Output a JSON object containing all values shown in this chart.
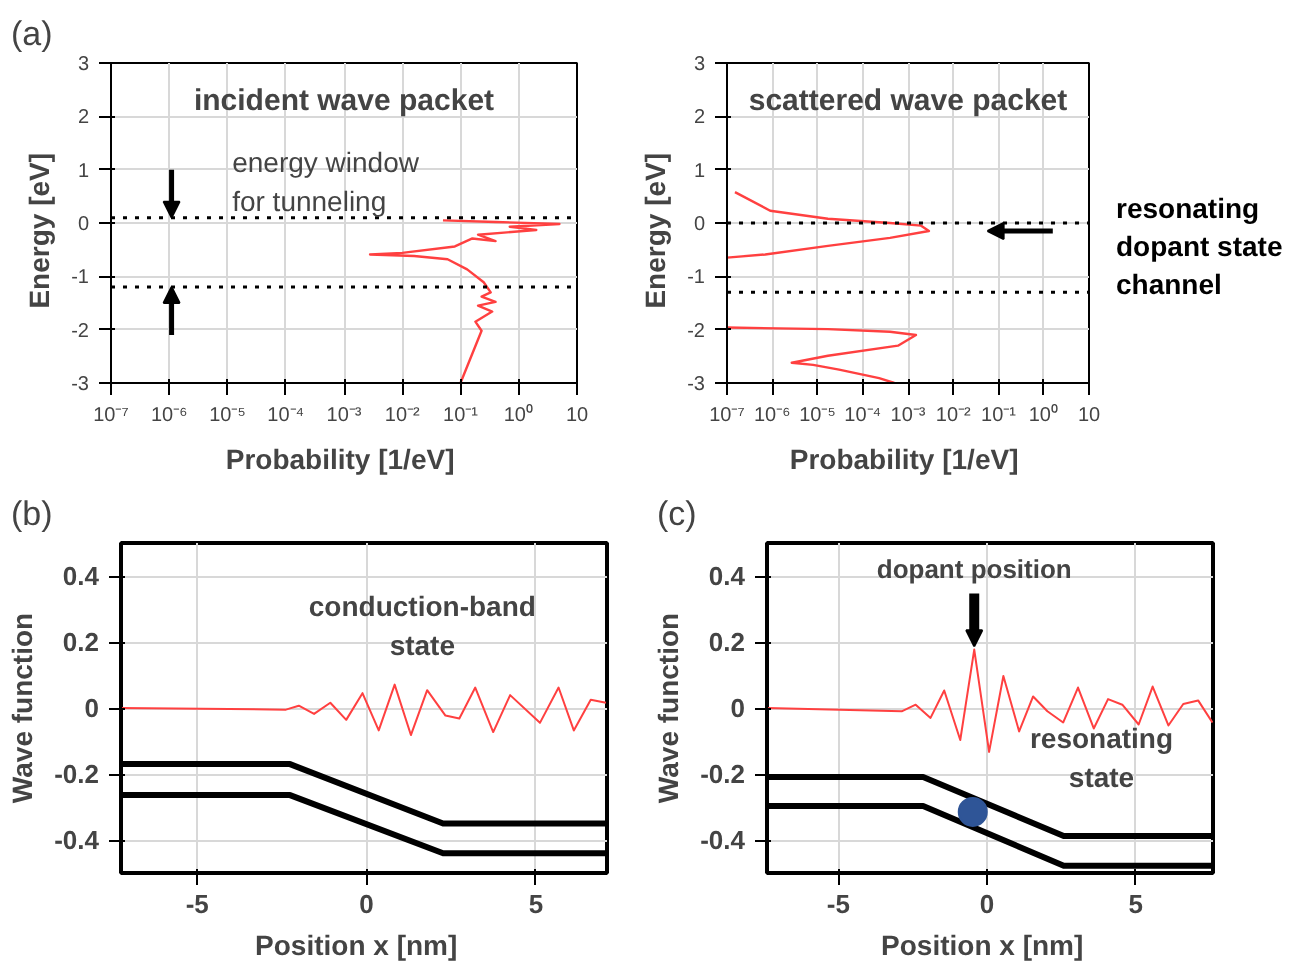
{
  "chart_data": [
    {
      "type": "line",
      "title": "incident wave packet",
      "xlabel": "Probability  [1/eV]",
      "ylabel": "Energy   [eV]",
      "log": "x",
      "grid": true,
      "xlim": [
        1e-07,
        10
      ],
      "ylim": [
        -3,
        3
      ],
      "xticks": [
        {
          "value": 1e-07,
          "label": "10⁻⁷"
        },
        {
          "value": 1e-06,
          "label": "10⁻⁶"
        },
        {
          "value": 1e-05,
          "label": "10⁻⁵"
        },
        {
          "value": 0.0001,
          "label": "10⁻⁴"
        },
        {
          "value": 0.001,
          "label": "10⁻³"
        },
        {
          "value": 0.01,
          "label": "10⁻²"
        },
        {
          "value": 0.1,
          "label": "10⁻¹"
        },
        {
          "value": 1,
          "label": "10⁰"
        },
        10
      ],
      "yticks": [
        -3,
        -2,
        -1,
        0,
        1,
        2,
        3
      ],
      "series": [
        {
          "color": "#ff4040",
          "x": [
            0.1,
            0.23,
            0.18,
            0.35,
            0.2,
            0.4,
            0.23,
            0.33,
            0.25,
            0.13,
            0.06,
            0.016,
            0.0028,
            0.01,
            0.08,
            0.16,
            0.4,
            0.2,
            2,
            0.7,
            5,
            0.4,
            0.05
          ],
          "values": [
            -3,
            -2.02,
            -1.85,
            -1.66,
            -1.55,
            -1.48,
            -1.38,
            -1.3,
            -1.11,
            -0.87,
            -0.68,
            -0.62,
            -0.59,
            -0.56,
            -0.44,
            -0.29,
            -0.34,
            -0.22,
            -0.13,
            -0.07,
            -0.02,
            0.02,
            0.05
          ]
        }
      ],
      "ref_lines": [
        {
          "axis": "y",
          "value": 0.1,
          "color": "#000000",
          "line_style": "dotted"
        },
        {
          "axis": "y",
          "value": -1.2,
          "color": "#000000",
          "line_style": "dotted"
        }
      ],
      "annotations": [
        "(a)",
        "energy window\nfor tunneling"
      ]
    },
    {
      "type": "line",
      "title": "scattered wave packet",
      "xlabel": "Probability  [1/eV]",
      "ylabel": "Energy   [eV]",
      "log": "x",
      "grid": true,
      "xlim": [
        1e-07,
        10
      ],
      "ylim": [
        -3,
        3
      ],
      "xticks": [
        {
          "value": 1e-07,
          "label": "10⁻⁷"
        },
        {
          "value": 1e-06,
          "label": "10⁻⁶"
        },
        {
          "value": 1e-05,
          "label": "10⁻⁵"
        },
        {
          "value": 0.0001,
          "label": "10⁻⁴"
        },
        {
          "value": 0.001,
          "label": "10⁻³"
        },
        {
          "value": 0.01,
          "label": "10⁻²"
        },
        {
          "value": 0.1,
          "label": "10⁻¹"
        },
        {
          "value": 1,
          "label": "10⁰"
        },
        10
      ],
      "yticks": [
        -3,
        -2,
        -1,
        0,
        1,
        2,
        3
      ],
      "series": [
        {
          "color": "#ff4040",
          "x": [
            1.5e-07,
            9e-07,
            1.7e-05,
            0.0004,
            0.00195,
            0.0029,
            0.0004,
            1.7e-05,
            7e-07,
            1e-07
          ],
          "values": [
            0.58,
            0.23,
            0.08,
            0,
            -0.05,
            -0.15,
            -0.28,
            -0.43,
            -0.59,
            -0.65
          ]
        },
        {
          "color": "#ff4040",
          "x": [
            1e-07,
            1.7e-05,
            0.0004,
            0.0015,
            0.0006,
            1.7e-05,
            2.7e-06,
            8e-06,
            3e-05,
            0.00023,
            0.0005
          ],
          "values": [
            -1.96,
            -1.99,
            -2.04,
            -2.1,
            -2.3,
            -2.49,
            -2.62,
            -2.66,
            -2.75,
            -2.91,
            -3
          ]
        }
      ],
      "ref_lines": [
        {
          "axis": "y",
          "value": 0,
          "color": "#000000",
          "line_style": "dotted"
        },
        {
          "axis": "y",
          "value": -1.3,
          "color": "#000000",
          "line_style": "dotted"
        }
      ],
      "annotations": [
        "resonating\ndopant state\nchannel"
      ]
    },
    {
      "type": "line",
      "title": "conduction-band\nstate",
      "xlabel": "Position  x  [nm]",
      "ylabel": "Wave function",
      "grid": true,
      "xlim": [
        -7.25,
        7.1
      ],
      "ylim": [
        -0.5,
        0.5
      ],
      "xticks": [
        -5,
        0,
        5
      ],
      "yticks": [
        -0.4,
        -0.2,
        0,
        0.2,
        0.4
      ],
      "series": [
        {
          "color": "#ff4040",
          "x": [
            -7.25,
            -2.38,
            -2.0,
            -1.55,
            -1.07,
            -0.6,
            -0.12,
            0.36,
            0.83,
            1.31,
            1.79,
            2.33,
            2.74,
            3.21,
            3.74,
            4.24,
            5.12,
            5.67,
            6.12,
            6.62,
            7.07
          ],
          "values": [
            0,
            -0.005,
            0.007,
            -0.018,
            0.016,
            -0.036,
            0.045,
            -0.068,
            0.071,
            -0.082,
            0.054,
            -0.023,
            -0.032,
            0.062,
            -0.073,
            0.039,
            -0.045,
            0.062,
            -0.068,
            0.025,
            0.016
          ]
        },
        {
          "color": "#000000",
          "x": [
            -7.25,
            -2.26,
            2.26,
            7.1
          ],
          "values": [
            -0.17,
            -0.17,
            -0.35,
            -0.35
          ]
        },
        {
          "color": "#000000",
          "x": [
            -7.25,
            -2.26,
            2.26,
            7.1
          ],
          "values": [
            -0.264,
            -0.264,
            -0.44,
            -0.44
          ]
        }
      ],
      "annotations": [
        "(b)"
      ]
    },
    {
      "type": "line",
      "title": "resonating\nstate",
      "xlabel": "Position  x  [nm]",
      "ylabel": "Wave function",
      "grid": true,
      "xlim": [
        -7.4,
        7.6
      ],
      "ylim": [
        -0.5,
        0.5
      ],
      "xticks": [
        -5,
        0,
        5
      ],
      "yticks": [
        -0.4,
        -0.2,
        0,
        0.2,
        0.4
      ],
      "series": [
        {
          "color": "#ff4040",
          "x": [
            -7.4,
            -2.87,
            -2.4,
            -1.9,
            -1.44,
            -0.9,
            -0.43,
            0.07,
            0.55,
            1.08,
            1.55,
            2.03,
            2.56,
            3.06,
            3.59,
            4.07,
            4.55,
            5.1,
            5.57,
            6.1,
            6.6,
            7.1,
            7.58
          ],
          "values": [
            0,
            -0.01,
            0.01,
            -0.03,
            0.053,
            -0.097,
            0.177,
            -0.133,
            0.097,
            -0.071,
            0.035,
            -0.01,
            -0.044,
            0.062,
            -0.062,
            0.027,
            0.01,
            -0.05,
            0.065,
            -0.053,
            0.012,
            0.023,
            -0.044
          ]
        },
        {
          "color": "#000000",
          "x": [
            -7.4,
            -2.15,
            2.58,
            7.6
          ],
          "values": [
            -0.209,
            -0.209,
            -0.388,
            -0.388
          ]
        },
        {
          "color": "#000000",
          "x": [
            -7.4,
            -2.15,
            2.58,
            7.6
          ],
          "values": [
            -0.297,
            -0.297,
            -0.478,
            -0.478
          ]
        },
        {
          "type": "scatter",
          "color": "#2f5597",
          "marker": "circle",
          "x": [
            -0.48
          ],
          "values": [
            -0.315
          ]
        }
      ],
      "annotations": [
        "(c)",
        {
          "text": "dopant position",
          "x": -0.43,
          "y": 0.177
        }
      ]
    }
  ]
}
